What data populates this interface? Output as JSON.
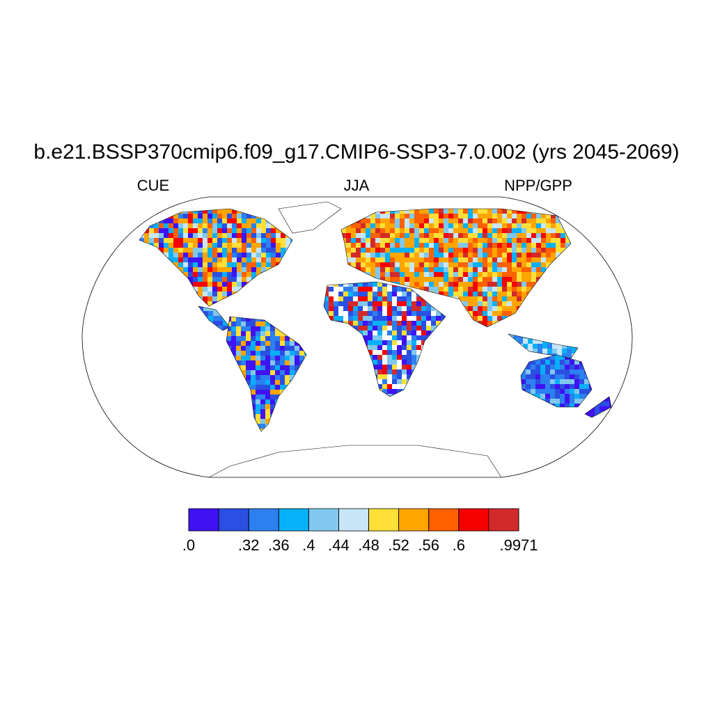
{
  "title": "b.e21.BSSP370cmip6.f09_g17.CMIP6-SSP3-7.0.002 (yrs 2045-2069)",
  "left_string": "CUE",
  "center_string": "JJA",
  "right_string": "NPP/GPP",
  "colorbar": {
    "colors": [
      "#4012f2",
      "#2b4fe2",
      "#2c80f0",
      "#08b0f8",
      "#80c8ee",
      "#c8e6f8",
      "#ffdf38",
      "#ffa500",
      "#ff6000",
      "#f60000",
      "#d22a2a"
    ],
    "levels": [
      {
        "value": 0,
        "label": ".0"
      },
      null,
      {
        "value": 0.32,
        "label": ".32"
      },
      {
        "value": 0.36,
        "label": ".36"
      },
      {
        "value": 0.4,
        "label": ".4"
      },
      {
        "value": 0.44,
        "label": ".44"
      },
      {
        "value": 0.48,
        "label": ".48"
      },
      {
        "value": 0.52,
        "label": ".52"
      },
      {
        "value": 0.56,
        "label": ".56"
      },
      {
        "value": 0.6,
        "label": ".6"
      },
      null,
      {
        "value": 0.9971,
        "label": ".9971"
      }
    ]
  }
}
